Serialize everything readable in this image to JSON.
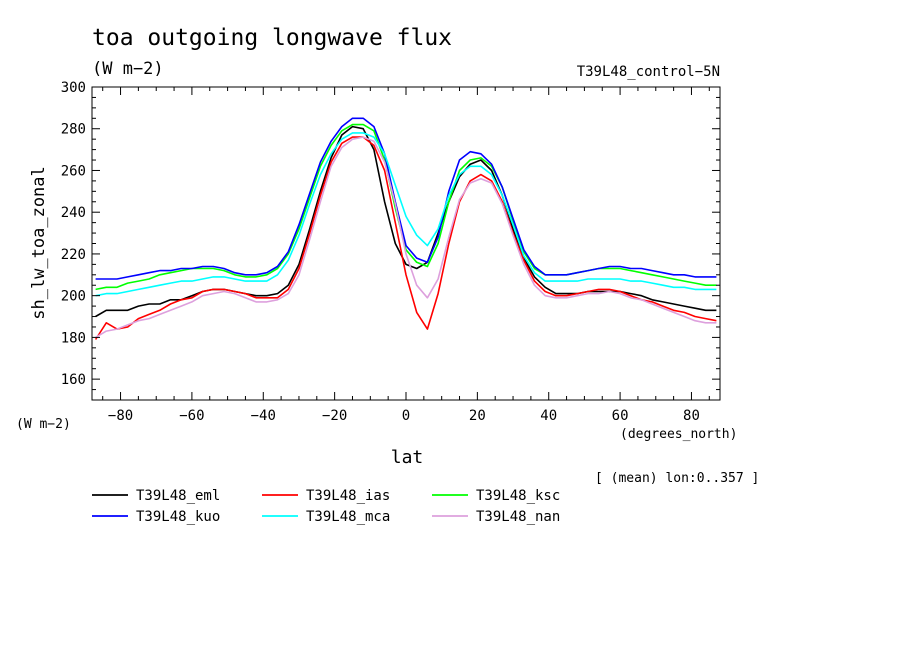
{
  "chart_data": {
    "type": "line",
    "title": "toa outgoing longwave flux",
    "subtitle": "(W m−2)",
    "dataset_label": "T39L48_control−5N",
    "ylabel": "sh_lw_toa_zonal",
    "y_units_label": "(W m−2)",
    "xlabel": "lat",
    "x_units_label": "(degrees_north)",
    "averaging_note": "[ (mean) lon:0..357 ]",
    "xlim": [
      -88,
      88
    ],
    "ylim": [
      150,
      300
    ],
    "x_ticks": [
      -80,
      -60,
      -40,
      -20,
      0,
      20,
      40,
      60,
      80
    ],
    "y_ticks": [
      160,
      180,
      200,
      220,
      240,
      260,
      280,
      300
    ],
    "grid": false,
    "legend_position": "bottom",
    "x": [
      -87,
      -84,
      -81,
      -78,
      -75,
      -72,
      -69,
      -66,
      -63,
      -60,
      -57,
      -54,
      -51,
      -48,
      -45,
      -42,
      -39,
      -36,
      -33,
      -30,
      -27,
      -24,
      -21,
      -18,
      -15,
      -12,
      -9,
      -6,
      -3,
      0,
      3,
      6,
      9,
      12,
      15,
      18,
      21,
      24,
      27,
      30,
      33,
      36,
      39,
      42,
      45,
      48,
      51,
      54,
      57,
      60,
      63,
      66,
      69,
      72,
      75,
      78,
      81,
      84,
      87
    ],
    "series": [
      {
        "name": "T39L48_eml",
        "color": "#000000",
        "values": [
          190,
          193,
          193,
          193,
          195,
          196,
          196,
          198,
          198,
          200,
          202,
          203,
          203,
          202,
          201,
          200,
          200,
          201,
          205,
          215,
          232,
          250,
          266,
          277,
          281,
          280,
          270,
          245,
          225,
          215,
          213,
          216,
          230,
          245,
          257,
          263,
          265,
          260,
          248,
          232,
          218,
          209,
          204,
          201,
          201,
          201,
          202,
          202,
          202,
          202,
          201,
          200,
          198,
          197,
          196,
          195,
          194,
          193,
          193
        ]
      },
      {
        "name": "T39L48_ias",
        "color": "#ff0000",
        "values": [
          179,
          187,
          184,
          185,
          189,
          191,
          193,
          196,
          198,
          199,
          202,
          203,
          203,
          202,
          201,
          199,
          199,
          199,
          203,
          213,
          230,
          248,
          264,
          273,
          276,
          276,
          272,
          260,
          235,
          210,
          192,
          184,
          201,
          225,
          245,
          255,
          258,
          255,
          245,
          230,
          217,
          207,
          202,
          200,
          200,
          201,
          202,
          203,
          203,
          202,
          200,
          198,
          197,
          195,
          193,
          192,
          190,
          189,
          188
        ]
      },
      {
        "name": "T39L48_ksc",
        "color": "#00ff00",
        "values": [
          203,
          204,
          204,
          206,
          207,
          208,
          210,
          211,
          212,
          213,
          213,
          213,
          212,
          210,
          209,
          209,
          210,
          213,
          220,
          232,
          247,
          262,
          272,
          279,
          282,
          282,
          279,
          265,
          242,
          222,
          216,
          214,
          225,
          245,
          260,
          265,
          266,
          262,
          252,
          236,
          221,
          213,
          210,
          210,
          210,
          211,
          212,
          213,
          213,
          213,
          212,
          211,
          210,
          209,
          208,
          207,
          206,
          205,
          205
        ]
      },
      {
        "name": "T39L48_kuo",
        "color": "#0000ff",
        "values": [
          208,
          208,
          208,
          209,
          210,
          211,
          212,
          212,
          213,
          213,
          214,
          214,
          213,
          211,
          210,
          210,
          211,
          214,
          221,
          234,
          249,
          264,
          274,
          281,
          285,
          285,
          281,
          268,
          245,
          224,
          218,
          216,
          228,
          250,
          265,
          269,
          268,
          263,
          252,
          237,
          222,
          214,
          210,
          210,
          210,
          211,
          212,
          213,
          214,
          214,
          213,
          213,
          212,
          211,
          210,
          210,
          209,
          209,
          209
        ]
      },
      {
        "name": "T39L48_mca",
        "color": "#00ffff",
        "values": [
          200,
          201,
          201,
          202,
          203,
          204,
          205,
          206,
          207,
          207,
          208,
          209,
          209,
          208,
          207,
          207,
          207,
          210,
          217,
          229,
          244,
          258,
          268,
          275,
          278,
          278,
          276,
          268,
          253,
          238,
          229,
          224,
          232,
          248,
          258,
          262,
          262,
          258,
          248,
          234,
          219,
          211,
          207,
          207,
          207,
          207,
          208,
          208,
          208,
          208,
          207,
          207,
          206,
          205,
          204,
          204,
          203,
          203,
          203
        ]
      },
      {
        "name": "T39L48_nan",
        "color": "#dda0dd",
        "values": [
          180,
          183,
          184,
          186,
          188,
          189,
          191,
          193,
          195,
          197,
          200,
          201,
          202,
          201,
          199,
          197,
          197,
          198,
          201,
          210,
          227,
          245,
          262,
          271,
          275,
          276,
          274,
          264,
          244,
          220,
          205,
          199,
          208,
          228,
          246,
          254,
          256,
          254,
          244,
          229,
          215,
          205,
          200,
          199,
          199,
          200,
          201,
          201,
          202,
          201,
          199,
          198,
          196,
          194,
          192,
          190,
          188,
          187,
          187
        ]
      }
    ]
  }
}
